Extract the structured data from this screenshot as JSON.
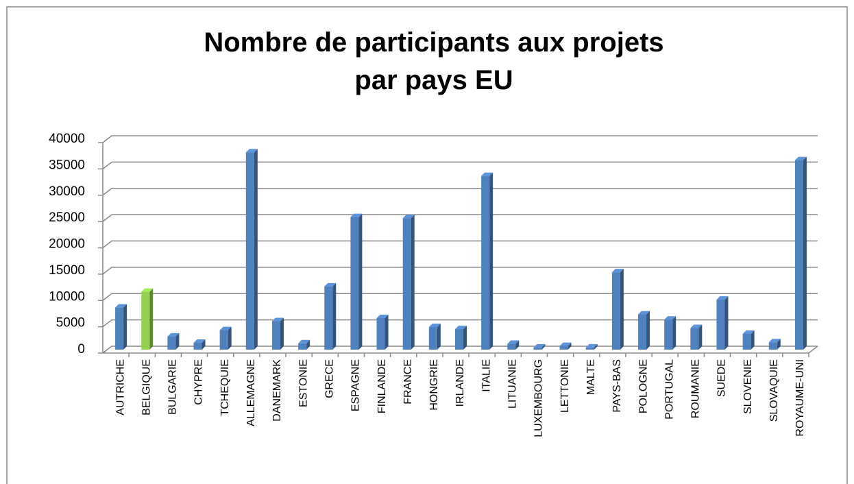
{
  "chart_data": {
    "type": "bar",
    "title": [
      "Nombre de participants aux projets",
      "par pays EU"
    ],
    "categories": [
      "AUTRICHE",
      "BELGIQUE",
      "BULGARIE",
      "CHYPRE",
      "TCHEQUIE",
      "ALLEMAGNE",
      "DANEMARK",
      "ESTONIE",
      "GRECE",
      "ESPAGNE",
      "FINLANDE",
      "FRANCE",
      "HONGRIE",
      "IRLANDE",
      "ITALIE",
      "LITUANIE",
      "LUXEMBOURG",
      "LETTONIE",
      "MALTE",
      "PAYS-BAS",
      "POLOGNE",
      "PORTUGAL",
      "ROUMANIE",
      "SUEDE",
      "SLOVENIE",
      "SLOVAQUIE",
      "ROYAUME-UNI"
    ],
    "values": [
      8000,
      11000,
      2500,
      1300,
      3700,
      37500,
      5400,
      1200,
      12000,
      25200,
      6000,
      25000,
      4300,
      3900,
      33000,
      1100,
      400,
      700,
      400,
      14700,
      6700,
      5700,
      4100,
      9500,
      3000,
      1400,
      36000
    ],
    "colors": [
      "#4f81bd",
      "#92d050",
      "#4f81bd",
      "#4f81bd",
      "#4f81bd",
      "#4f81bd",
      "#4f81bd",
      "#4f81bd",
      "#4f81bd",
      "#4f81bd",
      "#4f81bd",
      "#4f81bd",
      "#4f81bd",
      "#4f81bd",
      "#4f81bd",
      "#4f81bd",
      "#4f81bd",
      "#4f81bd",
      "#4f81bd",
      "#4f81bd",
      "#4f81bd",
      "#4f81bd",
      "#4f81bd",
      "#4f81bd",
      "#4f81bd",
      "#4f81bd",
      "#4f81bd"
    ],
    "ylim": [
      0,
      40000
    ],
    "yticks": [
      0,
      5000,
      10000,
      15000,
      20000,
      25000,
      30000,
      35000,
      40000
    ],
    "grid": true
  }
}
